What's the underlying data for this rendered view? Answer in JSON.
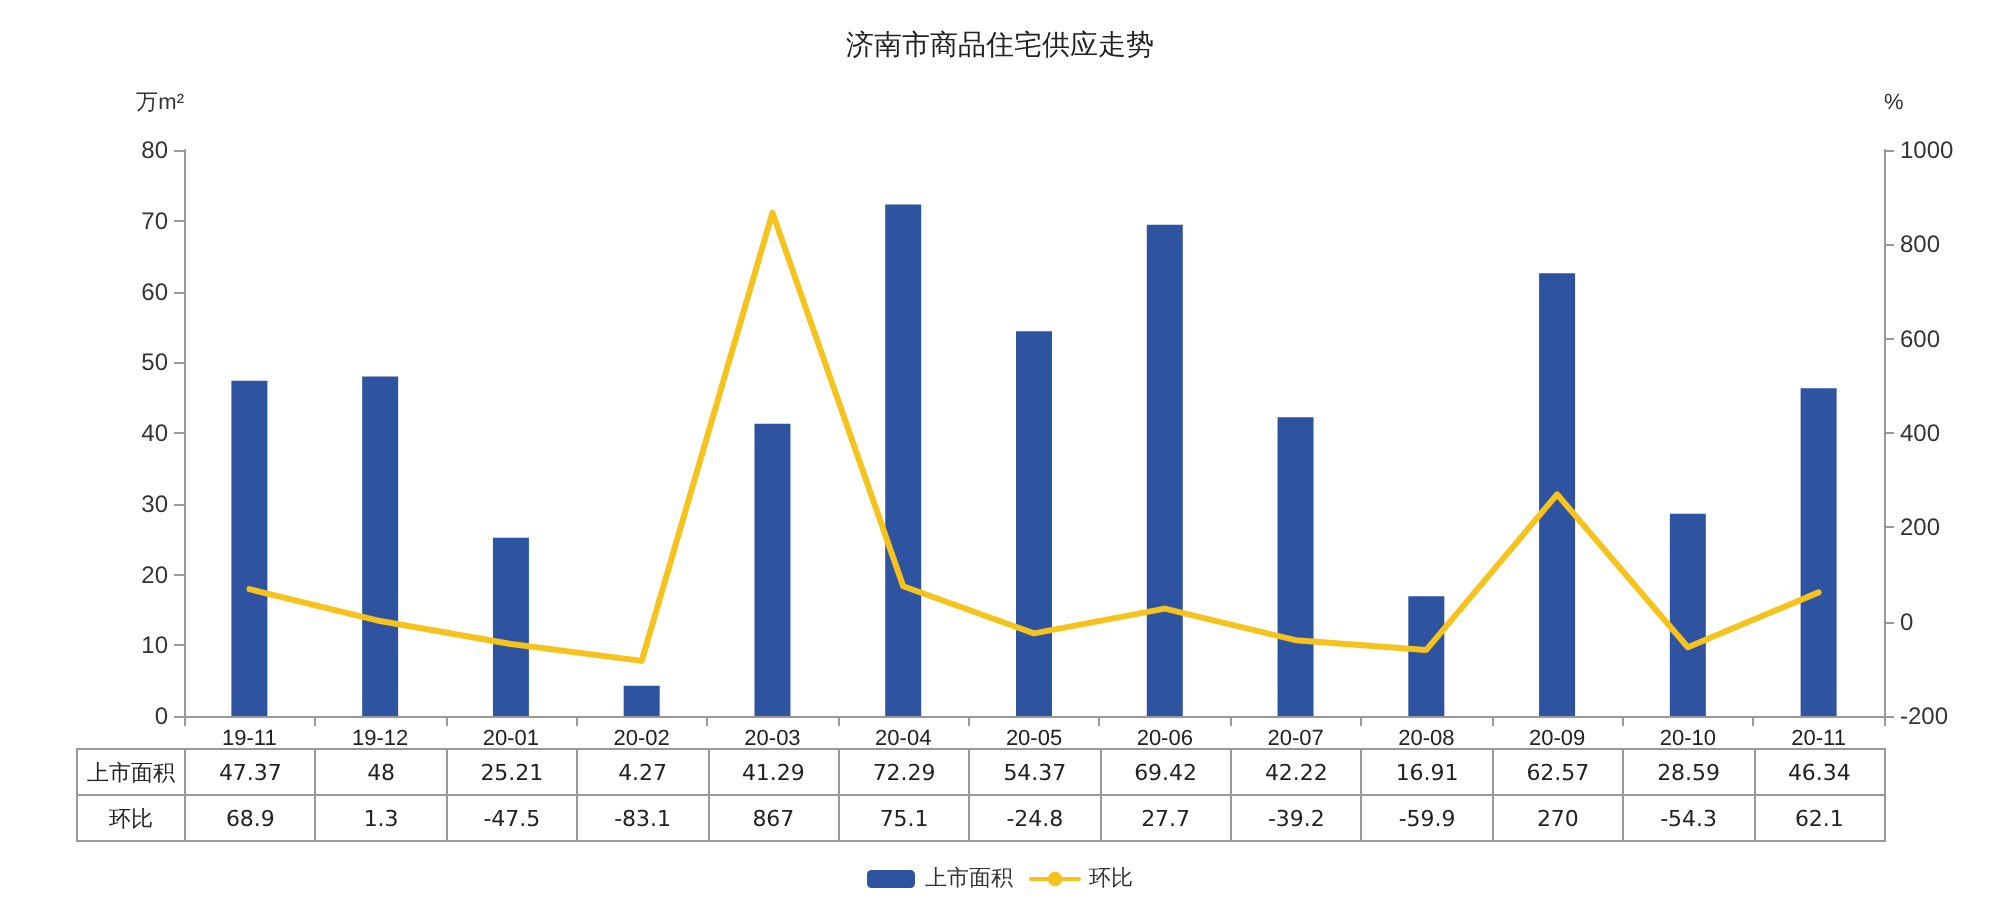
{
  "chart_data": {
    "type": "bar",
    "title": "济南市商品住宅供应走势",
    "ylabel": "万m²",
    "y2label": "%",
    "categories": [
      "19-11",
      "19-12",
      "20-01",
      "20-02",
      "20-03",
      "20-04",
      "20-05",
      "20-06",
      "20-07",
      "20-08",
      "20-09",
      "20-10",
      "20-11"
    ],
    "series": [
      {
        "name": "上市面积",
        "color": "#2e54a1",
        "values": [
          47.37,
          48,
          25.21,
          4.27,
          41.29,
          72.29,
          54.37,
          69.42,
          42.22,
          16.91,
          62.57,
          28.59,
          46.34
        ]
      },
      {
        "name": "环比",
        "type": "line",
        "axis": "y2",
        "color": "#f5c31c",
        "values": [
          68.9,
          1.3,
          -47.5,
          -83.1,
          867,
          75.1,
          -24.8,
          27.7,
          -39.2,
          -59.9,
          270,
          -54.3,
          62.1
        ]
      }
    ],
    "ylim": [
      0,
      80
    ],
    "yticks": [
      0,
      10,
      20,
      30,
      40,
      50,
      60,
      70,
      80
    ],
    "y2lim": [
      -200,
      1000
    ],
    "y2ticks": [
      -200,
      0,
      200,
      400,
      600,
      800,
      1000
    ],
    "data_labels": true,
    "legend": "bottom",
    "marker": "none",
    "line_style": "solid"
  }
}
